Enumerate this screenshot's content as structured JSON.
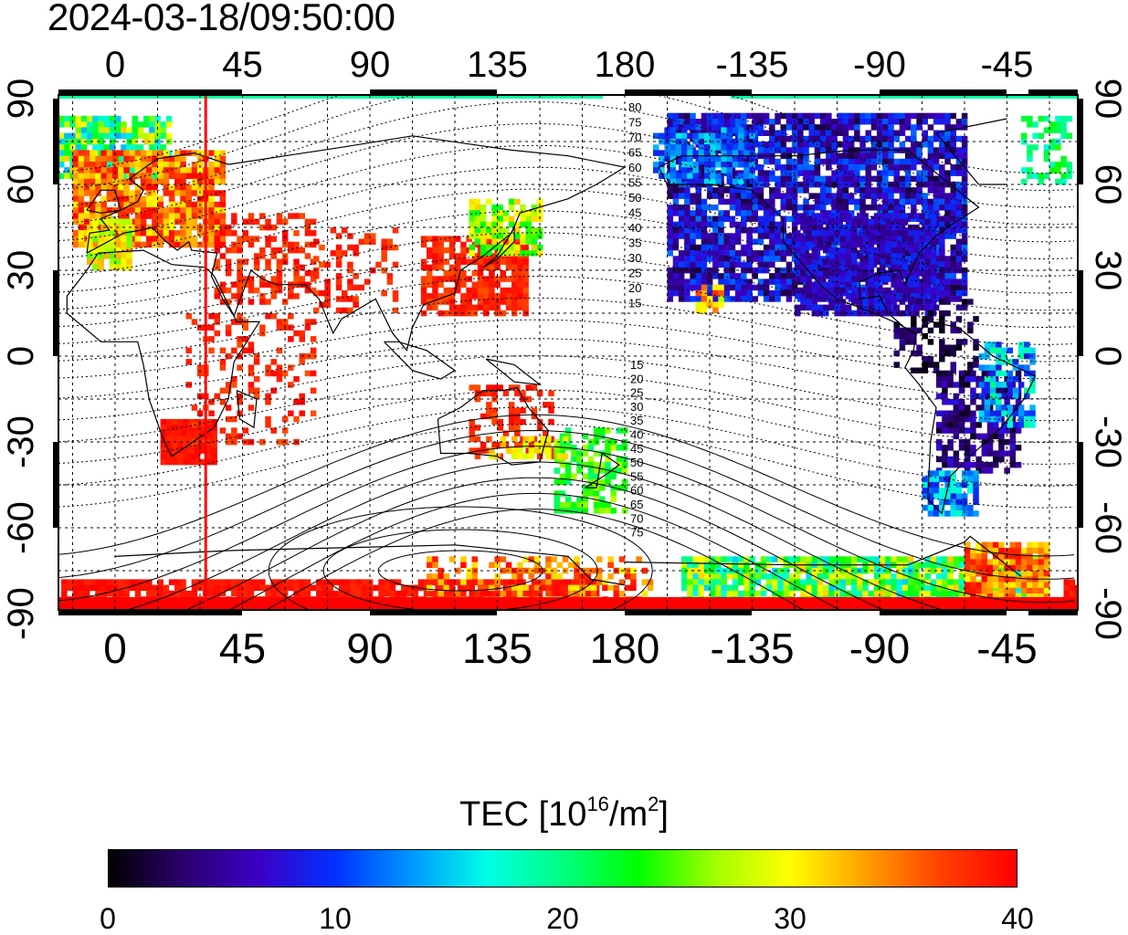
{
  "timestamp": "2024-03-18/09:50:00",
  "map": {
    "lon_ticks": [
      "0",
      "45",
      "90",
      "135",
      "180",
      "-135",
      "-90",
      "-45"
    ],
    "lat_ticks": [
      "90",
      "60",
      "30",
      "0",
      "-30",
      "-60",
      "-90"
    ],
    "contour_labels_north": [
      "80",
      "75",
      "70",
      "65",
      "60",
      "55",
      "50",
      "45",
      "40",
      "35",
      "30",
      "25",
      "20",
      "15"
    ],
    "contour_labels_south": [
      "15",
      "20",
      "25",
      "30",
      "35",
      "40",
      "45",
      "50",
      "55",
      "60",
      "65",
      "70",
      "75"
    ],
    "terminator_lon": 32,
    "terminator_color": "#ff0000"
  },
  "colorbar": {
    "title_prefix": "TEC  [10",
    "title_exp": "16",
    "title_mid": "/m",
    "title_exp2": "2",
    "title_suffix": "]",
    "min": 0,
    "max": 40,
    "ticks": [
      "0",
      "10",
      "20",
      "30",
      "40"
    ],
    "colors": [
      "#000000",
      "#2a006e",
      "#3a00c8",
      "#0032ff",
      "#0096ff",
      "#00ffe6",
      "#00ff80",
      "#00ff00",
      "#a0ff00",
      "#ffff00",
      "#ffa000",
      "#ff4000",
      "#ff0000"
    ]
  }
}
